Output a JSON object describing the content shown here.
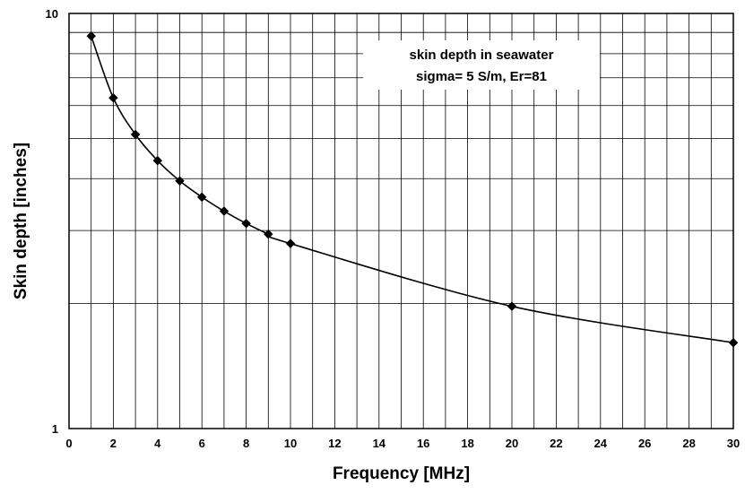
{
  "chart_data": {
    "type": "line",
    "title": "",
    "xlabel": "Frequency [MHz]",
    "ylabel": "Skin depth [inches]",
    "x_scale": "linear",
    "y_scale": "log",
    "xlim": [
      0,
      30
    ],
    "ylim": [
      1,
      10
    ],
    "x_ticks": [
      "0",
      "2",
      "4",
      "6",
      "8",
      "10",
      "12",
      "14",
      "16",
      "18",
      "20",
      "22",
      "24",
      "26",
      "28",
      "30"
    ],
    "y_ticks": [
      "1",
      "10"
    ],
    "grid": true,
    "legend": "none",
    "annotation": {
      "lines": [
        "skin depth in seawater",
        "sigma= 5 S/m, Er=81"
      ],
      "placement": "top-right"
    },
    "series": [
      {
        "marker": "diamond",
        "color": "#000000",
        "x": [
          1,
          2,
          3,
          4,
          5,
          6,
          7,
          8,
          9,
          10,
          20,
          30
        ],
        "y": [
          8.82,
          6.26,
          5.11,
          4.42,
          3.95,
          3.61,
          3.34,
          3.12,
          2.94,
          2.79,
          1.97,
          1.61
        ]
      }
    ]
  }
}
